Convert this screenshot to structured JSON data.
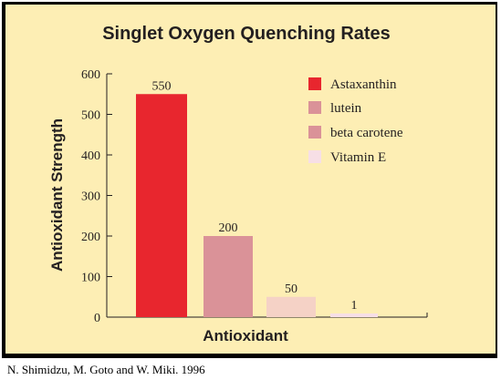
{
  "chart_data": {
    "type": "bar",
    "title": "Singlet Oxygen Quenching Rates",
    "xlabel": "Antioxidant",
    "ylabel": "Antioxidant Strength",
    "ylim": [
      0,
      600
    ],
    "yticks": [
      "0",
      "100",
      "200",
      "300",
      "400",
      "500",
      "600"
    ],
    "categories": [
      "Astaxanthin",
      "lutein",
      "beta carotene",
      "Vitamin E"
    ],
    "values": [
      550,
      200,
      50,
      1
    ],
    "data_labels": [
      "550",
      "200",
      "50",
      "1"
    ],
    "colors": [
      "#e8262e",
      "#da9298",
      "#f5d2c6",
      "#f7dfe6"
    ],
    "legend": {
      "position": "top-right",
      "entries": [
        "Astaxanthin",
        "lutein",
        "beta carotene",
        "Vitamin E"
      ],
      "colors": [
        "#e8262e",
        "#da9298",
        "#da9298",
        "#f7dfe6"
      ]
    },
    "grid": false
  },
  "citation": "N. Shimidzu, M. Goto and W. Miki.  1996",
  "colors": {
    "panel_background": "#fdeeb4"
  }
}
